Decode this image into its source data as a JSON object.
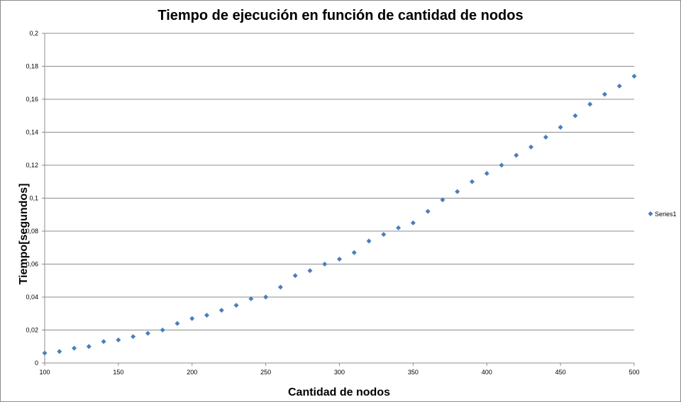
{
  "chart_data": {
    "type": "scatter",
    "title": "Tiempo de ejecución en función de cantidad de nodos",
    "xlabel": "Cantidad de nodos",
    "ylabel": "Tiempo[segundos]",
    "xlim": [
      100,
      500
    ],
    "ylim": [
      0,
      0.2
    ],
    "x_ticks": [
      100,
      150,
      200,
      250,
      300,
      350,
      400,
      450,
      500
    ],
    "x_tick_labels": [
      "100",
      "150",
      "200",
      "250",
      "300",
      "350",
      "400",
      "450",
      "500"
    ],
    "y_ticks": [
      0,
      0.02,
      0.04,
      0.06,
      0.08,
      0.1,
      0.12,
      0.14,
      0.16,
      0.18,
      0.2
    ],
    "y_tick_labels": [
      "0",
      "0,02",
      "0,04",
      "0,06",
      "0,08",
      "0,1",
      "0,12",
      "0,14",
      "0,16",
      "0,18",
      "0,2"
    ],
    "grid": true,
    "legend_position": "right",
    "colors": {
      "marker": "#4a7ebb",
      "grid": "#8c8c8c",
      "axis": "#8c8c8c"
    },
    "series": [
      {
        "name": "Series1",
        "x": [
          100,
          110,
          120,
          130,
          140,
          150,
          160,
          170,
          180,
          190,
          200,
          210,
          220,
          230,
          240,
          250,
          260,
          270,
          280,
          290,
          300,
          310,
          320,
          330,
          340,
          350,
          360,
          370,
          380,
          390,
          400,
          410,
          420,
          430,
          440,
          450,
          460,
          470,
          480,
          490,
          500
        ],
        "y": [
          0.006,
          0.007,
          0.009,
          0.01,
          0.013,
          0.014,
          0.016,
          0.018,
          0.02,
          0.024,
          0.027,
          0.029,
          0.032,
          0.035,
          0.039,
          0.04,
          0.046,
          0.053,
          0.056,
          0.06,
          0.063,
          0.067,
          0.074,
          0.078,
          0.082,
          0.085,
          0.092,
          0.099,
          0.104,
          0.11,
          0.115,
          0.12,
          0.126,
          0.131,
          0.137,
          0.143,
          0.15,
          0.157,
          0.163,
          0.168,
          0.174
        ]
      }
    ]
  }
}
